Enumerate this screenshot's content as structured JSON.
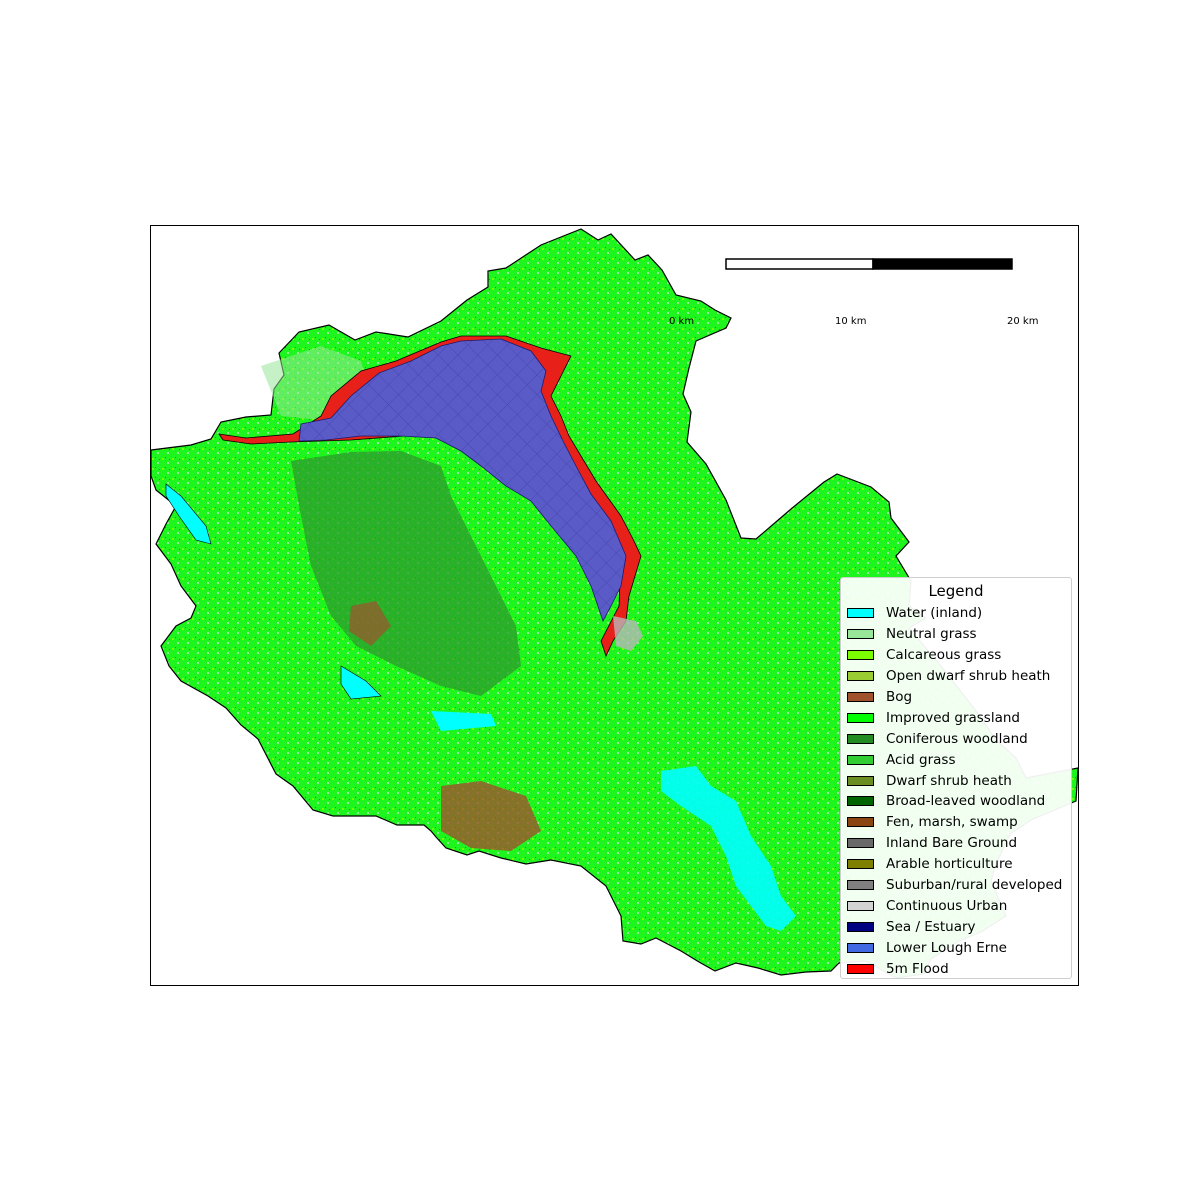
{
  "map": {
    "scale_bar": {
      "labels": [
        "0 km",
        "10 km",
        "20 km"
      ]
    },
    "layers": {
      "base_fill": "#1ef51e",
      "water": "#00ffff",
      "lough_fill": "#5b5bc8",
      "flood_fill": "#e8201a",
      "outline": "#000000"
    }
  },
  "legend": {
    "title": "Legend",
    "items": [
      {
        "label": "Water (inland)",
        "color": "#00ffff"
      },
      {
        "label": "Neutral grass",
        "color": "#98e698"
      },
      {
        "label": "Calcareous grass",
        "color": "#7cfc00"
      },
      {
        "label": "Open dwarf shrub heath",
        "color": "#9acd32"
      },
      {
        "label": "Bog",
        "color": "#a0522d"
      },
      {
        "label": "Improved grassland",
        "color": "#00ff00"
      },
      {
        "label": "Coniferous woodland",
        "color": "#228b22"
      },
      {
        "label": "Acid grass",
        "color": "#32cd32"
      },
      {
        "label": "Dwarf shrub heath",
        "color": "#6b8e23"
      },
      {
        "label": "Broad-leaved woodland",
        "color": "#006400"
      },
      {
        "label": "Fen, marsh, swamp",
        "color": "#8b4513"
      },
      {
        "label": "Inland Bare Ground",
        "color": "#696969"
      },
      {
        "label": "Arable horticulture",
        "color": "#808000"
      },
      {
        "label": "Suburban/rural developed",
        "color": "#808080"
      },
      {
        "label": "Continuous Urban",
        "color": "#d3d3d3"
      },
      {
        "label": "Sea / Estuary",
        "color": "#000080"
      },
      {
        "label": "Lower Lough Erne",
        "color": "#4169e1"
      },
      {
        "label": "5m Flood",
        "color": "#ff0000"
      }
    ]
  }
}
